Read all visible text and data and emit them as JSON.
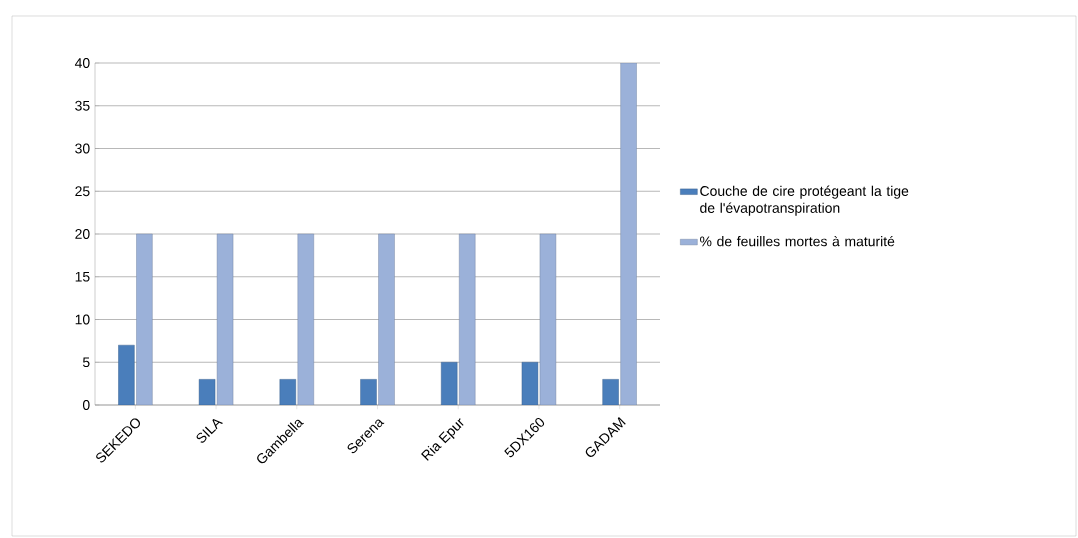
{
  "chart_data": {
    "type": "bar",
    "categories": [
      "SEKEDO",
      "SILA",
      "Gambella",
      "Serena",
      "Ria Epur",
      "5DX160",
      "GADAM"
    ],
    "series": [
      {
        "name": "Couche de cire protégeant la tige  de l'évapotranspiration",
        "color": "#4a7ebb",
        "values": [
          7,
          3,
          3,
          3,
          5,
          5,
          3
        ]
      },
      {
        "name": "% de feuilles mortes à maturité",
        "color": "#9bb1d9",
        "values": [
          20,
          20,
          20,
          20,
          20,
          20,
          40
        ]
      }
    ],
    "ylim": [
      0,
      40
    ],
    "yticks": [
      0,
      5,
      10,
      15,
      20,
      25,
      30,
      35,
      40
    ],
    "grid": "y",
    "legend": "right"
  }
}
